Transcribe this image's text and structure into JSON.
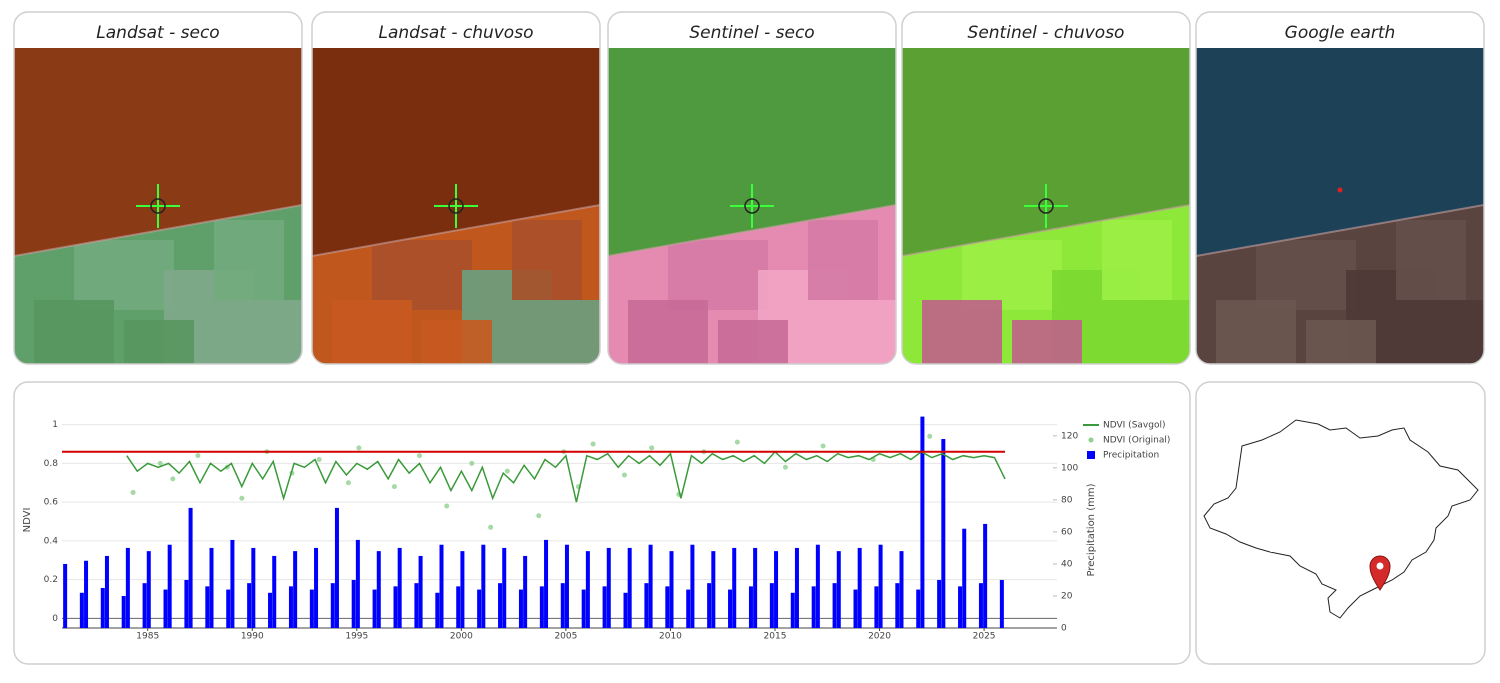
{
  "panels": [
    {
      "title": "Landsat - seco"
    },
    {
      "title": "Landsat - chuvoso"
    },
    {
      "title": "Sentinel - seco"
    },
    {
      "title": "Sentinel - chuvoso"
    },
    {
      "title": "Google earth"
    }
  ],
  "chart_data": {
    "type": "line",
    "y_label": "NDVI",
    "y2_label": "Precipitation (mm)",
    "xlim": [
      1980.9,
      2026.0
    ],
    "xticks": [
      1985,
      1990,
      1995,
      2000,
      2005,
      2010,
      2015,
      2020,
      2025
    ],
    "ylim": [
      -0.05,
      1.05
    ],
    "yticks": [
      0,
      0.2,
      0.4,
      0.6,
      0.8,
      1
    ],
    "y2lim": [
      0,
      133
    ],
    "y2ticks": [
      0,
      20,
      40,
      60,
      80,
      100,
      120
    ],
    "grid": true,
    "legend": "right",
    "reference_line": 0.86,
    "reference_color": "#d40000",
    "series": [
      {
        "name": "NDVI (Savgol)",
        "type": "line",
        "color": "#3a9a3a",
        "x": [
          1984,
          1984.5,
          1985,
          1985.5,
          1986,
          1986.5,
          1987,
          1987.5,
          1988,
          1988.5,
          1989,
          1989.5,
          1990,
          1990.5,
          1991,
          1991.5,
          1992,
          1992.5,
          1993,
          1993.5,
          1994,
          1994.5,
          1995,
          1995.5,
          1996,
          1996.5,
          1997,
          1997.5,
          1998,
          1998.5,
          1999,
          1999.5,
          2000,
          2000.5,
          2001,
          2001.5,
          2002,
          2002.5,
          2003,
          2003.5,
          2004,
          2004.5,
          2005,
          2005.5,
          2006,
          2006.5,
          2007,
          2007.5,
          2008,
          2008.5,
          2009,
          2009.5,
          2010,
          2010.5,
          2011,
          2011.5,
          2012,
          2012.5,
          2013,
          2013.5,
          2014,
          2014.5,
          2015,
          2015.5,
          2016,
          2016.5,
          2017,
          2017.5,
          2018,
          2018.5,
          2019,
          2019.5,
          2020,
          2020.5,
          2021,
          2021.5,
          2022,
          2022.5,
          2023,
          2023.5,
          2024,
          2024.5,
          2025,
          2025.5,
          2026
        ],
        "values": [
          0.84,
          0.76,
          0.8,
          0.78,
          0.8,
          0.75,
          0.81,
          0.7,
          0.8,
          0.76,
          0.8,
          0.68,
          0.8,
          0.72,
          0.81,
          0.62,
          0.8,
          0.78,
          0.82,
          0.7,
          0.81,
          0.74,
          0.8,
          0.77,
          0.81,
          0.72,
          0.82,
          0.75,
          0.8,
          0.7,
          0.78,
          0.66,
          0.76,
          0.66,
          0.78,
          0.62,
          0.75,
          0.7,
          0.79,
          0.72,
          0.82,
          0.78,
          0.84,
          0.6,
          0.84,
          0.82,
          0.85,
          0.78,
          0.84,
          0.8,
          0.84,
          0.79,
          0.85,
          0.62,
          0.84,
          0.8,
          0.85,
          0.82,
          0.84,
          0.81,
          0.84,
          0.8,
          0.86,
          0.81,
          0.85,
          0.82,
          0.84,
          0.81,
          0.85,
          0.83,
          0.84,
          0.82,
          0.85,
          0.83,
          0.85,
          0.82,
          0.86,
          0.83,
          0.85,
          0.82,
          0.84,
          0.83,
          0.84,
          0.83,
          0.72
        ]
      },
      {
        "name": "NDVI (Original)",
        "type": "scatter",
        "color": "#8fcf8f",
        "x": [
          1984.3,
          1985.6,
          1986.2,
          1987.4,
          1988.8,
          1989.5,
          1990.7,
          1991.9,
          1993.2,
          1994.6,
          1995.1,
          1996.8,
          1998.0,
          1999.3,
          2000.5,
          2001.4,
          2002.2,
          2003.7,
          2004.9,
          2005.6,
          2006.3,
          2007.8,
          2009.1,
          2010.4,
          2011.6,
          2013.2,
          2015.5,
          2017.3,
          2019.7,
          2022.4
        ],
        "values": [
          0.65,
          0.8,
          0.72,
          0.84,
          0.78,
          0.62,
          0.86,
          0.75,
          0.82,
          0.7,
          0.88,
          0.68,
          0.84,
          0.58,
          0.8,
          0.47,
          0.76,
          0.53,
          0.86,
          0.68,
          0.9,
          0.74,
          0.88,
          0.64,
          0.86,
          0.91,
          0.78,
          0.89,
          0.82,
          0.94
        ]
      },
      {
        "name": "Precipitation",
        "type": "bar",
        "color": "#0000ff",
        "axis": "y2",
        "x": [
          1981.05,
          1981.85,
          1982.05,
          1982.85,
          1983.05,
          1983.85,
          1984.05,
          1984.85,
          1985.05,
          1985.85,
          1986.05,
          1986.85,
          1987.05,
          1987.85,
          1988.05,
          1988.85,
          1989.05,
          1989.85,
          1990.05,
          1990.85,
          1991.05,
          1991.85,
          1992.05,
          1992.85,
          1993.05,
          1993.85,
          1994.05,
          1994.85,
          1995.05,
          1995.85,
          1996.05,
          1996.85,
          1997.05,
          1997.85,
          1998.05,
          1998.85,
          1999.05,
          1999.85,
          2000.05,
          2000.85,
          2001.05,
          2001.85,
          2002.05,
          2002.85,
          2003.05,
          2003.85,
          2004.05,
          2004.85,
          2005.05,
          2005.85,
          2006.05,
          2006.85,
          2007.05,
          2007.85,
          2008.05,
          2008.85,
          2009.05,
          2009.85,
          2010.05,
          2010.85,
          2011.05,
          2011.85,
          2012.05,
          2012.85,
          2013.05,
          2013.85,
          2014.05,
          2014.85,
          2015.05,
          2015.85,
          2016.05,
          2016.85,
          2017.05,
          2017.85,
          2018.05,
          2018.85,
          2019.05,
          2019.85,
          2020.05,
          2020.85,
          2021.05,
          2021.85,
          2022.05,
          2022.85,
          2023.05,
          2023.85,
          2024.05,
          2024.85,
          2025.05,
          2025.85
        ],
        "values": [
          40,
          22,
          42,
          25,
          45,
          20,
          50,
          28,
          48,
          24,
          52,
          30,
          75,
          26,
          50,
          24,
          55,
          28,
          50,
          22,
          45,
          26,
          48,
          24,
          50,
          28,
          75,
          30,
          55,
          24,
          48,
          26,
          50,
          28,
          45,
          22,
          52,
          26,
          48,
          24,
          52,
          28,
          50,
          24,
          45,
          26,
          55,
          28,
          52,
          24,
          48,
          26,
          50,
          22,
          50,
          28,
          52,
          26,
          48,
          24,
          52,
          28,
          48,
          24,
          50,
          26,
          50,
          28,
          48,
          22,
          50,
          26,
          52,
          28,
          48,
          24,
          50,
          26,
          52,
          28,
          48,
          24,
          132,
          30,
          118,
          26,
          62,
          28,
          65,
          30
        ]
      }
    ]
  }
}
